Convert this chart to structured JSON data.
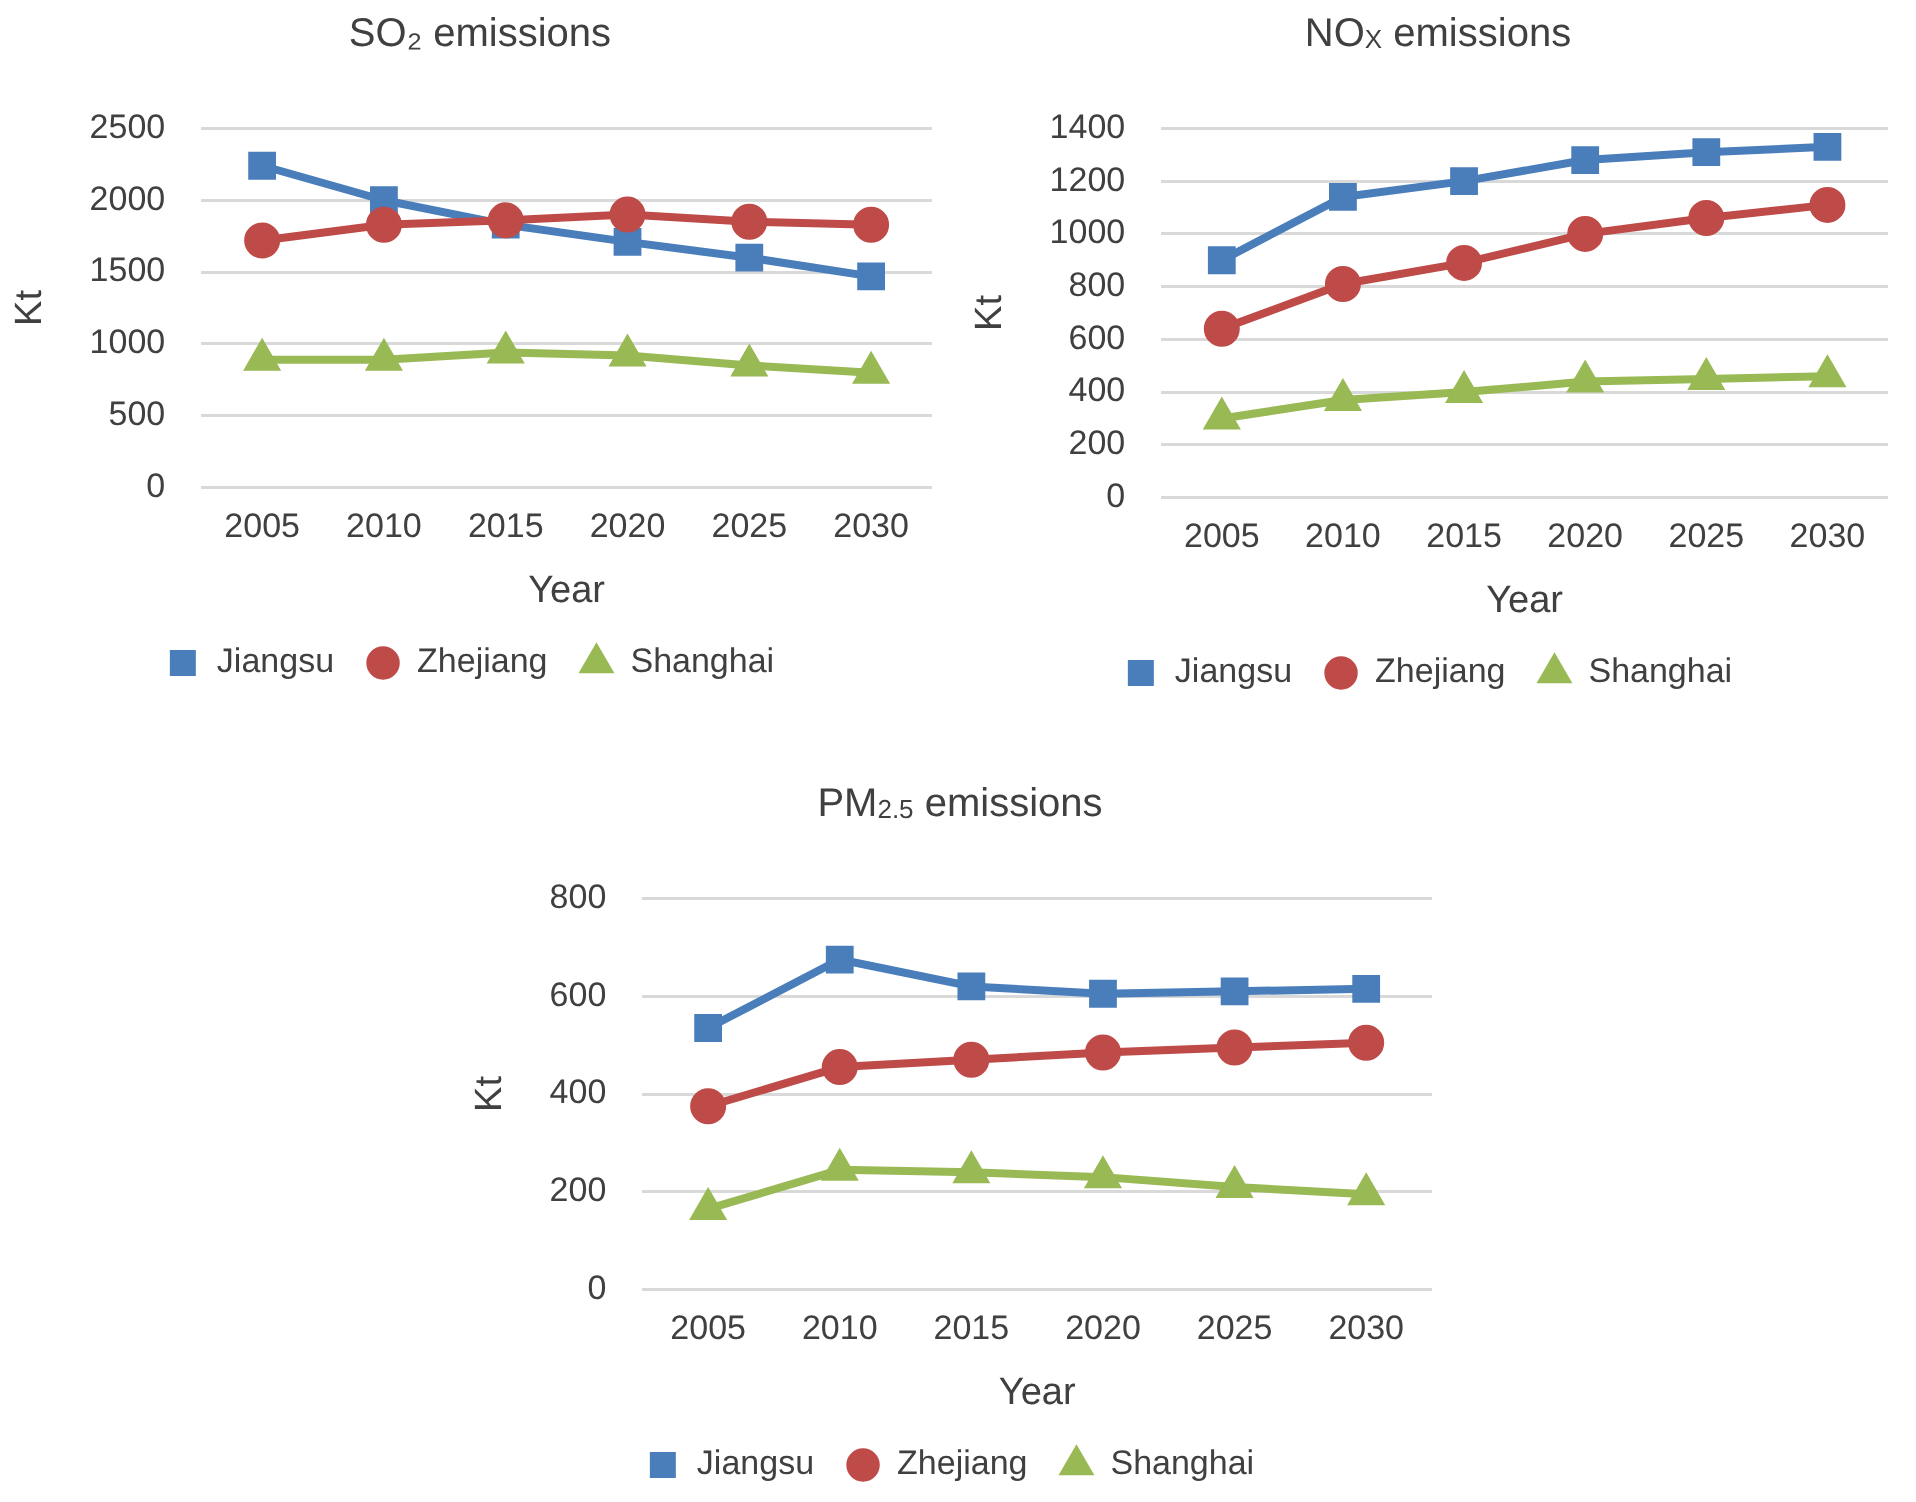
{
  "chart_data": [
    {
      "type": "line",
      "title": "SO₂  emissions",
      "xlabel": "Year",
      "ylabel": "Kt",
      "categories": [
        "2005",
        "2010",
        "2015",
        "2020",
        "2025",
        "2030"
      ],
      "ylim": [
        0,
        2500
      ],
      "yticks": [
        0,
        500,
        1000,
        1500,
        2000,
        2500
      ],
      "grid": "y",
      "legend": "bottom",
      "series": [
        {
          "name": "Jiangsu",
          "color": "#4a7ebb",
          "marker": "square",
          "values": [
            2240,
            2000,
            1830,
            1710,
            1600,
            1470
          ]
        },
        {
          "name": "Zhejiang",
          "color": "#be4b48",
          "marker": "circle",
          "values": [
            1720,
            1830,
            1860,
            1900,
            1850,
            1830
          ]
        },
        {
          "name": "Shanghai",
          "color": "#98b954",
          "marker": "triangle",
          "values": [
            890,
            890,
            940,
            920,
            850,
            800
          ]
        }
      ]
    },
    {
      "type": "line",
      "title": "NO$_{X}$  emissions",
      "xlabel": "Year",
      "ylabel": "Kt",
      "categories": [
        "2005",
        "2010",
        "2015",
        "2020",
        "2025",
        "2030"
      ],
      "ylim": [
        0,
        1400
      ],
      "yticks": [
        0,
        200,
        400,
        600,
        800,
        1000,
        1200,
        1400
      ],
      "grid": "y",
      "legend": "bottom",
      "series": [
        {
          "name": "Jiangsu",
          "color": "#4a7ebb",
          "marker": "square",
          "values": [
            900,
            1140,
            1200,
            1280,
            1310,
            1330
          ]
        },
        {
          "name": "Zhejiang",
          "color": "#be4b48",
          "marker": "circle",
          "values": [
            640,
            810,
            890,
            1000,
            1060,
            1110
          ]
        },
        {
          "name": "Shanghai",
          "color": "#98b954",
          "marker": "triangle",
          "values": [
            300,
            370,
            400,
            440,
            450,
            460
          ]
        }
      ]
    },
    {
      "type": "line",
      "title": "PM$_{2.5}$  emissions",
      "xlabel": "Year",
      "ylabel": "Kt",
      "categories": [
        "2005",
        "2010",
        "2015",
        "2020",
        "2025",
        "2030"
      ],
      "ylim": [
        0,
        800
      ],
      "yticks": [
        0,
        200,
        400,
        600,
        800
      ],
      "grid": "y",
      "legend": "bottom",
      "series": [
        {
          "name": "Jiangsu",
          "color": "#4a7ebb",
          "marker": "square",
          "values": [
            535,
            675,
            620,
            605,
            610,
            615
          ]
        },
        {
          "name": "Zhejiang",
          "color": "#be4b48",
          "marker": "circle",
          "values": [
            375,
            455,
            470,
            485,
            495,
            505
          ]
        },
        {
          "name": "Shanghai",
          "color": "#98b954",
          "marker": "triangle",
          "values": [
            165,
            245,
            240,
            230,
            210,
            195
          ]
        }
      ]
    }
  ]
}
